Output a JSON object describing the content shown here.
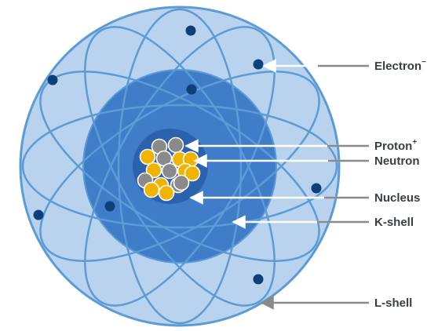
{
  "colors": {
    "outer_shell": "#b9d3ee",
    "inner_shell": "#3f7dc8",
    "orbit": "#5b9bd6",
    "electron": "#0d3f78",
    "proton": "#8a8a8a",
    "neutron": "#f0b400",
    "nucleus_bg": "#2b62ad",
    "pointer_white": "#ffffff",
    "pointer_gray": "#8a8a8a",
    "label_text": "#3a3f44"
  },
  "labels": {
    "electron": {
      "text": "Electron",
      "sup": "−"
    },
    "proton": {
      "text": "Proton",
      "sup": "+"
    },
    "neutron": {
      "text": "Neutron"
    },
    "nucleus": {
      "text": "Nucleus"
    },
    "k_shell": {
      "text": "K-shell"
    },
    "l_shell": {
      "text": "L-shell"
    }
  }
}
